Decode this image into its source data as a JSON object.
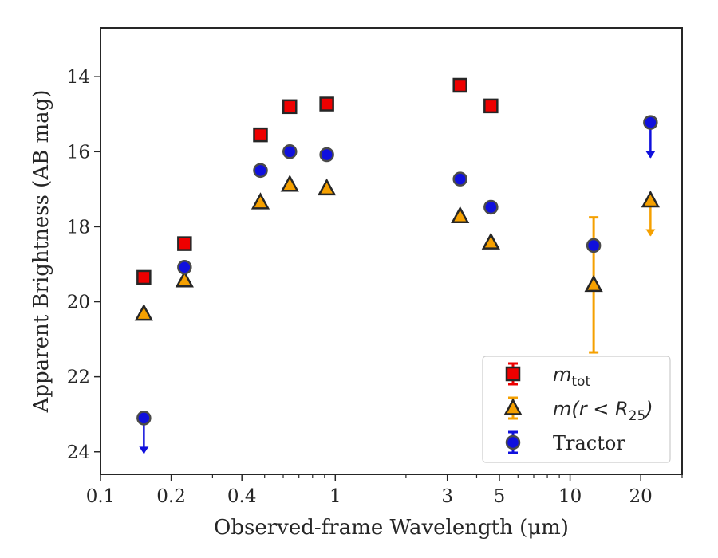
{
  "chart_data": {
    "type": "scatter",
    "xscale": "log",
    "yaxis_inverted": true,
    "xlim": [
      0.1,
      30
    ],
    "ylim": [
      24.6,
      12.7
    ],
    "xlabel": "Observed-frame Wavelength (μm)",
    "ylabel": "Apparent Brightness (AB mag)",
    "xticks": [
      {
        "value": 0.1,
        "label": "0.1"
      },
      {
        "value": 0.2,
        "label": "0.2"
      },
      {
        "value": 0.4,
        "label": "0.4"
      },
      {
        "value": 1,
        "label": "1"
      },
      {
        "value": 3,
        "label": "3"
      },
      {
        "value": 5,
        "label": "5"
      },
      {
        "value": 10,
        "label": "10"
      },
      {
        "value": 20,
        "label": "20"
      }
    ],
    "yticks": [
      {
        "value": 14,
        "label": "14"
      },
      {
        "value": 16,
        "label": "16"
      },
      {
        "value": 18,
        "label": "18"
      },
      {
        "value": 20,
        "label": "20"
      },
      {
        "value": 22,
        "label": "22"
      },
      {
        "value": 24,
        "label": "24"
      }
    ],
    "legend_position": "lower-right",
    "series": [
      {
        "name": "m_tot",
        "legend": {
          "main": "m",
          "sub": "tot",
          "suffix": ""
        },
        "marker": "square",
        "color": "#ee0000",
        "points": [
          {
            "x": 0.153,
            "y": 19.35
          },
          {
            "x": 0.228,
            "y": 18.45
          },
          {
            "x": 0.48,
            "y": 15.55
          },
          {
            "x": 0.64,
            "y": 14.8
          },
          {
            "x": 0.92,
            "y": 14.73
          },
          {
            "x": 3.4,
            "y": 14.23
          },
          {
            "x": 4.6,
            "y": 14.78
          }
        ]
      },
      {
        "name": "m(r < R_25)",
        "legend": {
          "main": "m(r < R",
          "sub": "25",
          "suffix": ")"
        },
        "marker": "triangle",
        "color": "#f5a000",
        "points": [
          {
            "x": 0.153,
            "y": 20.32
          },
          {
            "x": 0.228,
            "y": 19.43
          },
          {
            "x": 0.48,
            "y": 17.35
          },
          {
            "x": 0.64,
            "y": 16.88
          },
          {
            "x": 0.92,
            "y": 16.98
          },
          {
            "x": 3.4,
            "y": 17.72
          },
          {
            "x": 4.6,
            "y": 18.42
          },
          {
            "x": 12.6,
            "y": 19.55,
            "err_low": 1.8,
            "err_high": 1.8
          },
          {
            "x": 22.0,
            "y": 17.3,
            "upper_limit": true
          }
        ]
      },
      {
        "name": "Tractor",
        "legend": {
          "main": "Tractor",
          "sub": "",
          "suffix": ""
        },
        "marker": "circle",
        "color": "#1010dd",
        "points": [
          {
            "x": 0.153,
            "y": 23.1,
            "upper_limit": true
          },
          {
            "x": 0.228,
            "y": 19.08
          },
          {
            "x": 0.48,
            "y": 16.5
          },
          {
            "x": 0.64,
            "y": 16.0
          },
          {
            "x": 0.92,
            "y": 16.08
          },
          {
            "x": 3.4,
            "y": 16.73
          },
          {
            "x": 4.6,
            "y": 17.48
          },
          {
            "x": 12.6,
            "y": 18.5
          },
          {
            "x": 22.0,
            "y": 15.22,
            "upper_limit": true
          }
        ]
      }
    ]
  }
}
